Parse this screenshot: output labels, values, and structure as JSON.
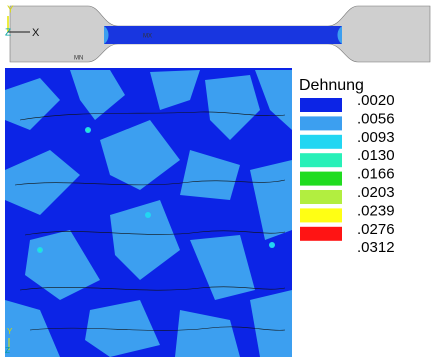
{
  "specimen": {
    "triad": {
      "y": "Y",
      "z": "Z",
      "x": "X"
    },
    "min_label": "MN",
    "max_label": "MX"
  },
  "plot": {
    "triad": {
      "y": "Y",
      "z": "Z"
    }
  },
  "legend": {
    "title": "Dehnung",
    "levels": [
      ".0020",
      ".0056",
      ".0093",
      ".0130",
      ".0166",
      ".0203",
      ".0239",
      ".0276",
      ".0312"
    ],
    "colors": [
      "#0c24e6",
      "#3c9ff0",
      "#22d6f2",
      "#28f0b8",
      "#20dc20",
      "#b2ee40",
      "#ffff14",
      "#ff1414"
    ]
  }
}
